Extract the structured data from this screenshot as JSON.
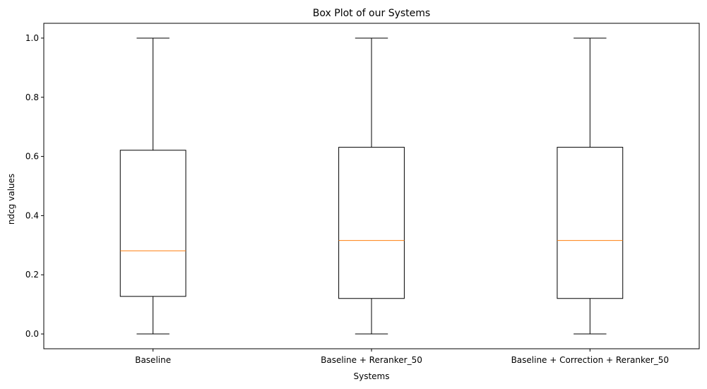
{
  "chart_data": {
    "type": "box",
    "title": "Box Plot of our Systems",
    "xlabel": "Systems",
    "ylabel": "ndcg values",
    "ylim": [
      -0.05,
      1.05
    ],
    "yticks": [
      0.0,
      0.2,
      0.4,
      0.6,
      0.8,
      1.0
    ],
    "ytick_labels": [
      "0.0",
      "0.2",
      "0.4",
      "0.6",
      "0.8",
      "1.0"
    ],
    "grid": false,
    "legend": "none",
    "categories": [
      "Baseline",
      "Baseline + Reranker_50",
      "Baseline + Correction + Reranker_50"
    ],
    "boxes": [
      {
        "category": "Baseline",
        "min": 0.0,
        "q1": 0.127,
        "median": 0.281,
        "q3": 0.621,
        "max": 1.0
      },
      {
        "category": "Baseline + Reranker_50",
        "min": 0.0,
        "q1": 0.12,
        "median": 0.316,
        "q3": 0.631,
        "max": 1.0
      },
      {
        "category": "Baseline + Correction + Reranker_50",
        "min": 0.0,
        "q1": 0.12,
        "median": 0.316,
        "q3": 0.631,
        "max": 1.0
      }
    ],
    "colors": {
      "box": "#000000",
      "median": "#ff7f0e",
      "axis": "#000000"
    }
  }
}
